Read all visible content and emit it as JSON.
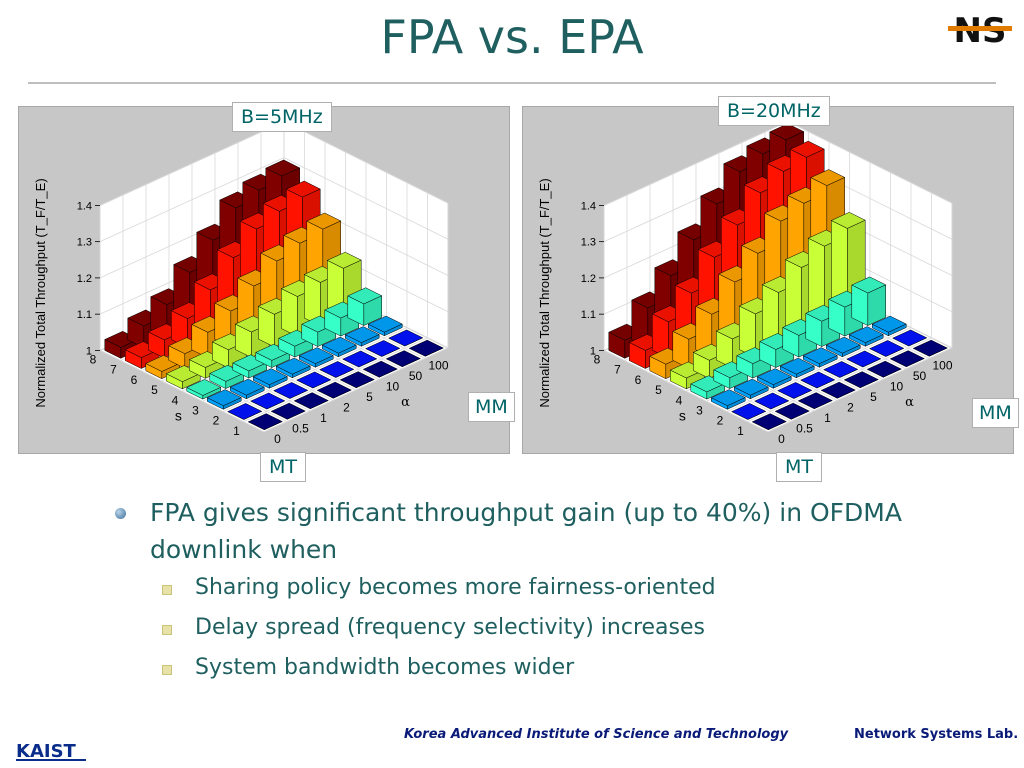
{
  "title": "FPA vs. EPA",
  "bullets": [
    {
      "text": "FPA gives significant throughput gain (up to 40%) in OFDMA downlink when",
      "sub": [
        "Sharing policy becomes more fairness-oriented",
        "Delay spread (frequency selectivity) increases",
        "System bandwidth becomes wider"
      ]
    }
  ],
  "footer": {
    "institute": "Korea Advanced  Institute  of Science  and Technology",
    "lab": "Network Systems Lab."
  },
  "logos": {
    "top_right": "NS",
    "bottom_left": "KAIST"
  },
  "callouts": {
    "chart1": {
      "bandwidth": "B=5MHz",
      "mt": "MT",
      "mm": "MM"
    },
    "chart2": {
      "bandwidth": "B=20MHz",
      "mt": "MT",
      "mm": "MM"
    }
  },
  "colors": {
    "accent": "#1f5f5f",
    "footer": "#0a1a78",
    "panel": "#c7c7c7"
  },
  "chart_data": [
    {
      "type": "bar3d",
      "zlabel": "Normalized Total Throughput (T_F/T_E)",
      "xlabel": "α",
      "ylabel": "s",
      "alpha_ticks": [
        "0",
        "0.5",
        "1",
        "2",
        "5",
        "10",
        "50",
        "100"
      ],
      "s_ticks": [
        "1",
        "2",
        "3",
        "4",
        "5",
        "6",
        "7",
        "8"
      ],
      "z_ticks": [
        "1",
        "1.1",
        "1.2",
        "1.3",
        "1.4"
      ],
      "zlim": [
        1,
        1.4
      ],
      "values": [
        [
          1.0,
          1.0,
          1.0,
          1.0,
          1.0,
          1.0,
          1.0,
          1.0
        ],
        [
          1.0,
          1.0,
          1.0,
          1.0,
          1.0,
          1.0,
          1.0,
          1.0
        ],
        [
          1.01,
          1.01,
          1.01,
          1.01,
          1.01,
          1.01,
          1.01,
          1.01
        ],
        [
          1.01,
          1.02,
          1.02,
          1.02,
          1.03,
          1.04,
          1.05,
          1.06
        ],
        [
          1.02,
          1.03,
          1.05,
          1.07,
          1.09,
          1.11,
          1.12,
          1.13
        ],
        [
          1.02,
          1.04,
          1.07,
          1.1,
          1.14,
          1.18,
          1.2,
          1.21
        ],
        [
          1.03,
          1.05,
          1.08,
          1.13,
          1.19,
          1.24,
          1.26,
          1.27
        ],
        [
          1.03,
          1.06,
          1.09,
          1.15,
          1.21,
          1.27,
          1.29,
          1.3
        ]
      ]
    },
    {
      "type": "bar3d",
      "zlabel": "Normalized Total Throughput (T_F/T_E)",
      "xlabel": "α",
      "ylabel": "s",
      "alpha_ticks": [
        "0",
        "0.5",
        "1",
        "2",
        "5",
        "10",
        "50",
        "100"
      ],
      "s_ticks": [
        "1",
        "2",
        "3",
        "4",
        "5",
        "6",
        "7",
        "8"
      ],
      "z_ticks": [
        "1",
        "1.1",
        "1.2",
        "1.3",
        "1.4"
      ],
      "zlim": [
        1,
        1.4
      ],
      "values": [
        [
          1.0,
          1.0,
          1.0,
          1.0,
          1.0,
          1.0,
          1.0,
          1.0
        ],
        [
          1.0,
          1.0,
          1.0,
          1.0,
          1.0,
          1.0,
          1.0,
          1.0
        ],
        [
          1.01,
          1.01,
          1.01,
          1.01,
          1.01,
          1.01,
          1.01,
          1.01
        ],
        [
          1.02,
          1.03,
          1.04,
          1.05,
          1.06,
          1.07,
          1.08,
          1.09
        ],
        [
          1.03,
          1.05,
          1.08,
          1.12,
          1.15,
          1.19,
          1.22,
          1.24
        ],
        [
          1.04,
          1.08,
          1.12,
          1.18,
          1.23,
          1.29,
          1.31,
          1.33
        ],
        [
          1.05,
          1.1,
          1.15,
          1.22,
          1.28,
          1.34,
          1.37,
          1.38
        ],
        [
          1.05,
          1.11,
          1.17,
          1.24,
          1.31,
          1.37,
          1.39,
          1.4
        ]
      ]
    }
  ]
}
